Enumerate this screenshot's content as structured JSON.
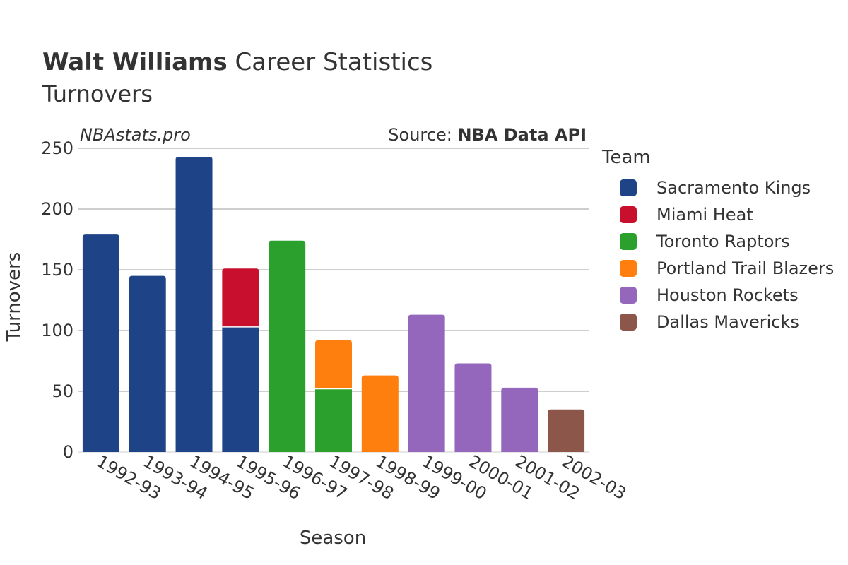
{
  "header": {
    "title_bold": "Walt Williams",
    "title_rest": "Career Statistics",
    "subtitle": "Turnovers",
    "watermark": "NBAstats.pro",
    "source_prefix": "Source:",
    "source_name": "NBA Data API"
  },
  "legend": {
    "title": "Team",
    "items": [
      {
        "label": "Sacramento Kings",
        "color": "#1f4387"
      },
      {
        "label": "Miami Heat",
        "color": "#c8102e"
      },
      {
        "label": "Toronto Raptors",
        "color": "#2ca02c"
      },
      {
        "label": "Portland Trail Blazers",
        "color": "#ff7f0e"
      },
      {
        "label": "Houston Rockets",
        "color": "#9467bd"
      },
      {
        "label": "Dallas Mavericks",
        "color": "#8c564b"
      }
    ]
  },
  "chart_data": {
    "type": "bar",
    "stacked": true,
    "xlabel": "Season",
    "ylabel": "Turnovers",
    "ylim": [
      0,
      250
    ],
    "yticks": [
      0,
      50,
      100,
      150,
      200,
      250
    ],
    "grid": true,
    "legend_position": "right",
    "categories": [
      "1992-93",
      "1993-94",
      "1994-95",
      "1995-96",
      "1996-97",
      "1997-98",
      "1998-99",
      "1999-00",
      "2000-01",
      "2001-02",
      "2002-03"
    ],
    "series": [
      {
        "name": "Sacramento Kings",
        "color": "#1f4387",
        "values": [
          179,
          145,
          243,
          103,
          0,
          0,
          0,
          0,
          0,
          0,
          0
        ]
      },
      {
        "name": "Miami Heat",
        "color": "#c8102e",
        "values": [
          0,
          0,
          0,
          48,
          0,
          0,
          0,
          0,
          0,
          0,
          0
        ]
      },
      {
        "name": "Toronto Raptors",
        "color": "#2ca02c",
        "values": [
          0,
          0,
          0,
          0,
          174,
          52,
          0,
          0,
          0,
          0,
          0
        ]
      },
      {
        "name": "Portland Trail Blazers",
        "color": "#ff7f0e",
        "values": [
          0,
          0,
          0,
          0,
          0,
          40,
          63,
          0,
          0,
          0,
          0
        ]
      },
      {
        "name": "Houston Rockets",
        "color": "#9467bd",
        "values": [
          0,
          0,
          0,
          0,
          0,
          0,
          0,
          113,
          73,
          53,
          0
        ]
      },
      {
        "name": "Dallas Mavericks",
        "color": "#8c564b",
        "values": [
          0,
          0,
          0,
          0,
          0,
          0,
          0,
          0,
          0,
          0,
          35
        ]
      }
    ]
  }
}
